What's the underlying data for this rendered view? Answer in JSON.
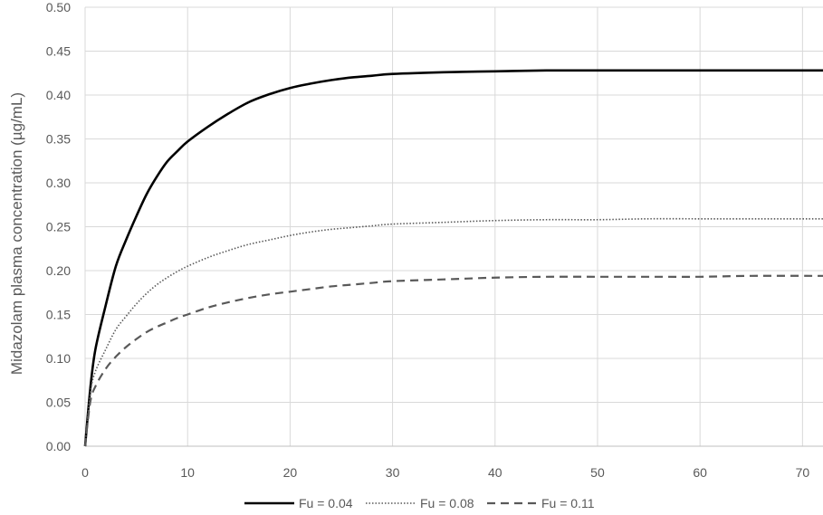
{
  "chart_data": {
    "type": "line",
    "xlabel": "",
    "ylabel": "Midazolam plasma concentration (µg/mL)",
    "xlim": [
      0,
      72
    ],
    "ylim": [
      0,
      0.5
    ],
    "x_ticks": [
      0,
      10,
      20,
      30,
      40,
      50,
      60,
      70
    ],
    "x_tick_labels": [
      "0",
      "10",
      "20",
      "30",
      "40",
      "50",
      "60",
      "70"
    ],
    "y_ticks": [
      0,
      0.05,
      0.1,
      0.15,
      0.2,
      0.25,
      0.3,
      0.35,
      0.4,
      0.45,
      0.5
    ],
    "y_tick_labels": [
      "0.00",
      "0.05",
      "0.10",
      "0.15",
      "0.20",
      "0.25",
      "0.30",
      "0.35",
      "0.40",
      "0.45",
      "0.50"
    ],
    "grid": true,
    "legend_position": "bottom",
    "series": [
      {
        "name": "Fu = 0.04",
        "style": "solid",
        "color": "#000000",
        "x": [
          0,
          0.5,
          1,
          2,
          3,
          4,
          5,
          6,
          7,
          8,
          9,
          10,
          12,
          14,
          16,
          18,
          20,
          22,
          24,
          26,
          28,
          30,
          35,
          40,
          45,
          50,
          55,
          60,
          65,
          72
        ],
        "values": [
          0.0,
          0.065,
          0.11,
          0.16,
          0.205,
          0.235,
          0.262,
          0.287,
          0.307,
          0.324,
          0.336,
          0.347,
          0.364,
          0.379,
          0.392,
          0.401,
          0.408,
          0.413,
          0.417,
          0.42,
          0.422,
          0.424,
          0.426,
          0.427,
          0.428,
          0.428,
          0.428,
          0.428,
          0.428,
          0.428
        ]
      },
      {
        "name": "Fu = 0.08",
        "style": "dotted",
        "color": "#595959",
        "x": [
          0,
          0.5,
          1,
          2,
          3,
          4,
          5,
          6,
          7,
          8,
          9,
          10,
          12,
          14,
          16,
          18,
          20,
          22,
          24,
          26,
          28,
          30,
          35,
          40,
          45,
          50,
          55,
          60,
          65,
          72
        ],
        "values": [
          0.0,
          0.06,
          0.085,
          0.11,
          0.133,
          0.148,
          0.162,
          0.174,
          0.184,
          0.192,
          0.199,
          0.205,
          0.215,
          0.223,
          0.23,
          0.235,
          0.24,
          0.244,
          0.247,
          0.249,
          0.251,
          0.253,
          0.255,
          0.257,
          0.258,
          0.258,
          0.259,
          0.259,
          0.259,
          0.259
        ]
      },
      {
        "name": "Fu = 0.11",
        "style": "dashed",
        "color": "#595959",
        "x": [
          0,
          0.5,
          1,
          2,
          3,
          4,
          5,
          6,
          7,
          8,
          9,
          10,
          12,
          14,
          16,
          18,
          20,
          22,
          24,
          26,
          28,
          30,
          35,
          40,
          45,
          50,
          55,
          60,
          65,
          72
        ],
        "values": [
          0.0,
          0.05,
          0.068,
          0.088,
          0.102,
          0.113,
          0.122,
          0.13,
          0.136,
          0.141,
          0.146,
          0.15,
          0.158,
          0.164,
          0.169,
          0.173,
          0.176,
          0.179,
          0.182,
          0.184,
          0.186,
          0.188,
          0.19,
          0.192,
          0.193,
          0.193,
          0.193,
          0.193,
          0.194,
          0.194
        ]
      }
    ]
  }
}
